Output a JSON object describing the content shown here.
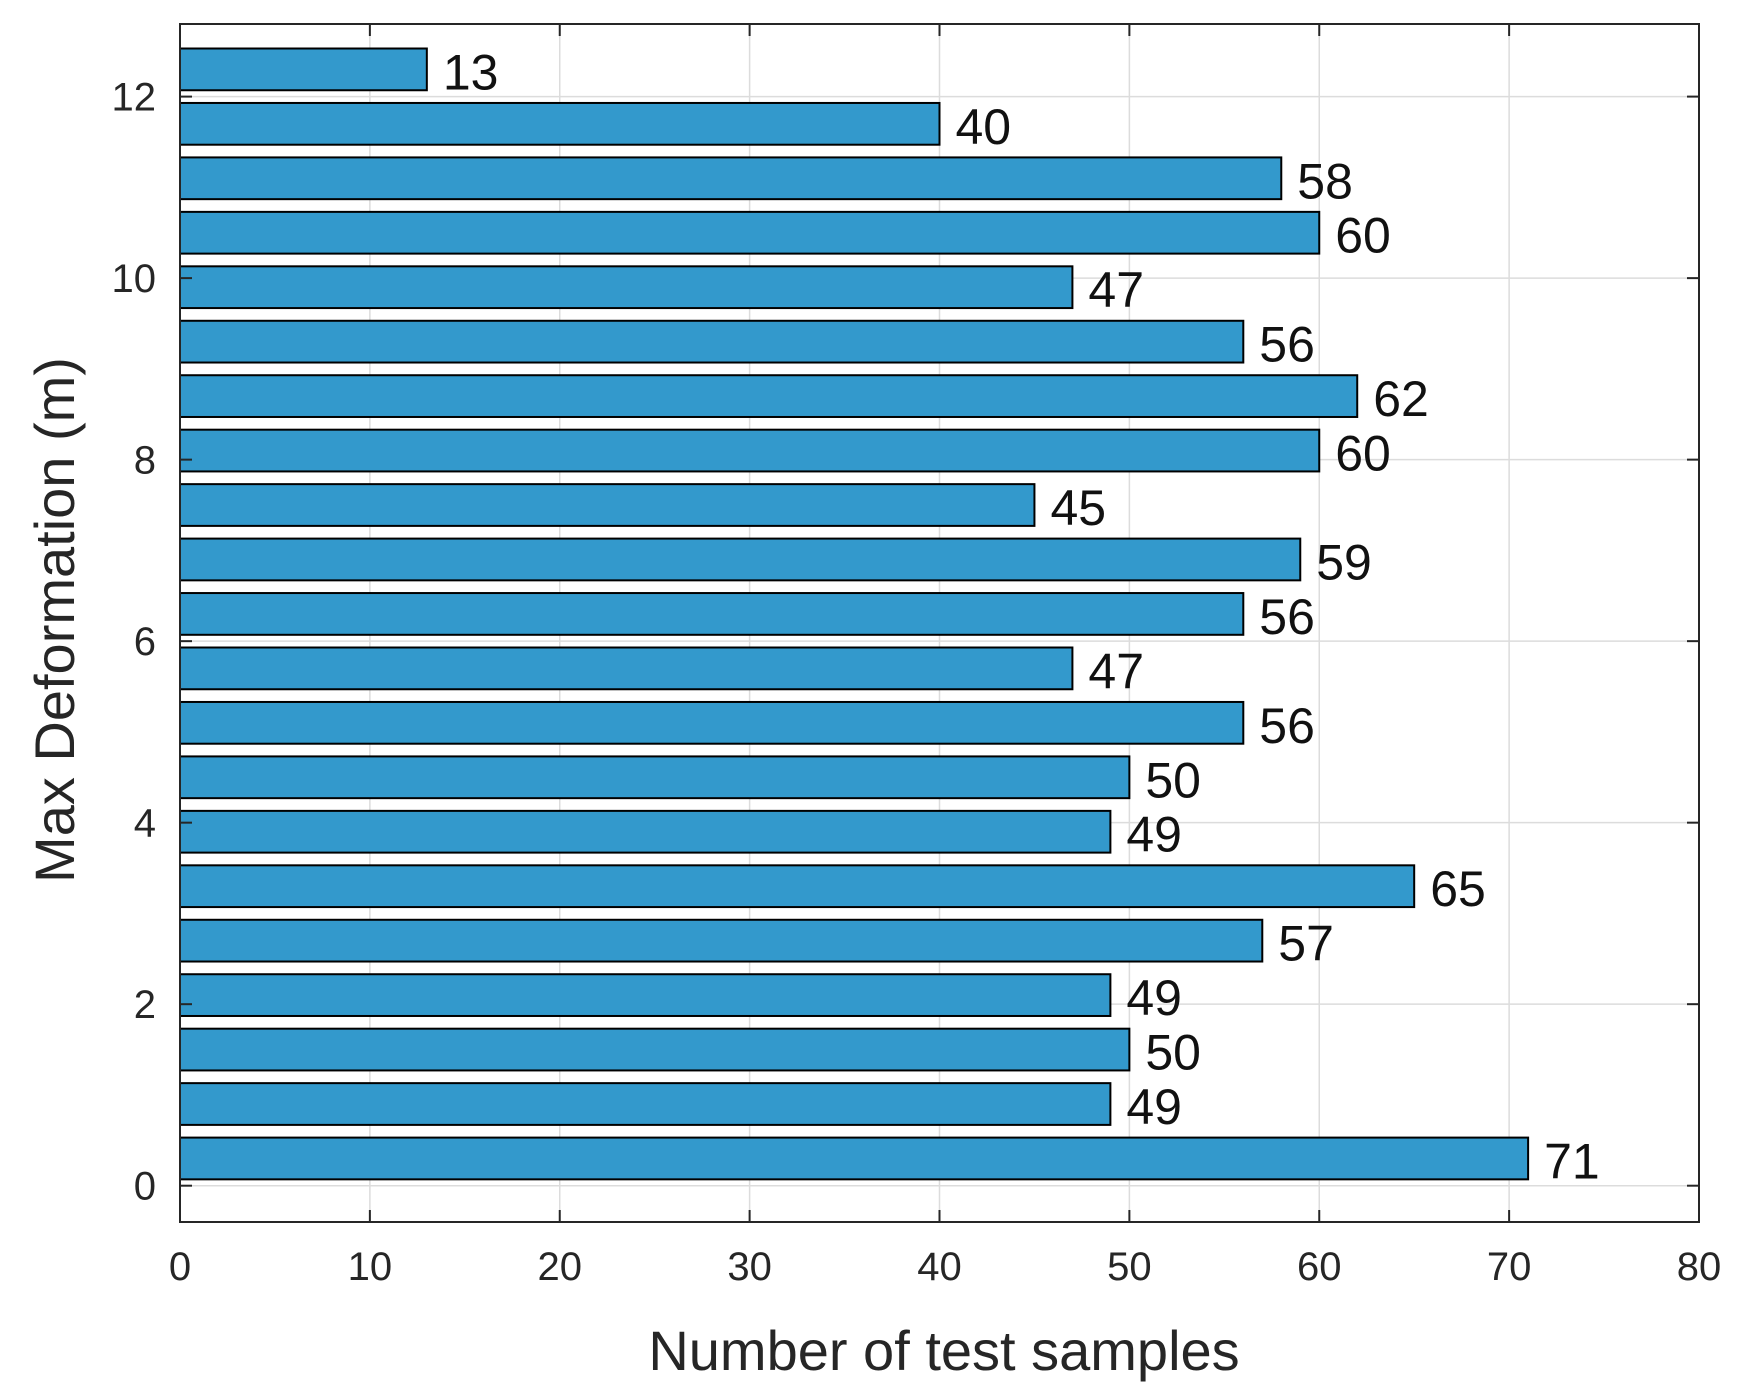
{
  "chart_data": {
    "type": "bar",
    "orientation": "horizontal",
    "xlabel": "Number of test samples",
    "ylabel": "Max Deformation (m)",
    "xlim": [
      0,
      80
    ],
    "ylim": [
      -0.4,
      12.8
    ],
    "xticks": [
      0,
      10,
      20,
      30,
      40,
      50,
      60,
      70,
      80
    ],
    "yticks": [
      0,
      2,
      4,
      6,
      8,
      10,
      12
    ],
    "grid": true,
    "bar_color": "#3399cc",
    "bars": [
      {
        "y": 0.3,
        "value": 71,
        "label": "71"
      },
      {
        "y": 0.9,
        "value": 49,
        "label": "49"
      },
      {
        "y": 1.5,
        "value": 50,
        "label": "50"
      },
      {
        "y": 2.1,
        "value": 49,
        "label": "49"
      },
      {
        "y": 2.7,
        "value": 57,
        "label": "57"
      },
      {
        "y": 3.3,
        "value": 65,
        "label": "65"
      },
      {
        "y": 3.9,
        "value": 49,
        "label": "49"
      },
      {
        "y": 4.5,
        "value": 50,
        "label": "50"
      },
      {
        "y": 5.1,
        "value": 56,
        "label": "56"
      },
      {
        "y": 5.7,
        "value": 47,
        "label": "47"
      },
      {
        "y": 6.3,
        "value": 56,
        "label": "56"
      },
      {
        "y": 6.9,
        "value": 59,
        "label": "59"
      },
      {
        "y": 7.5,
        "value": 45,
        "label": "45"
      },
      {
        "y": 8.1,
        "value": 60,
        "label": "60"
      },
      {
        "y": 8.7,
        "value": 62,
        "label": "62"
      },
      {
        "y": 9.3,
        "value": 56,
        "label": "56"
      },
      {
        "y": 9.9,
        "value": 47,
        "label": "47"
      },
      {
        "y": 10.5,
        "value": 60,
        "label": "60"
      },
      {
        "y": 11.1,
        "value": 58,
        "label": "58"
      },
      {
        "y": 11.7,
        "value": 40,
        "label": "40"
      },
      {
        "y": 12.3,
        "value": 13,
        "label": "13"
      }
    ]
  }
}
